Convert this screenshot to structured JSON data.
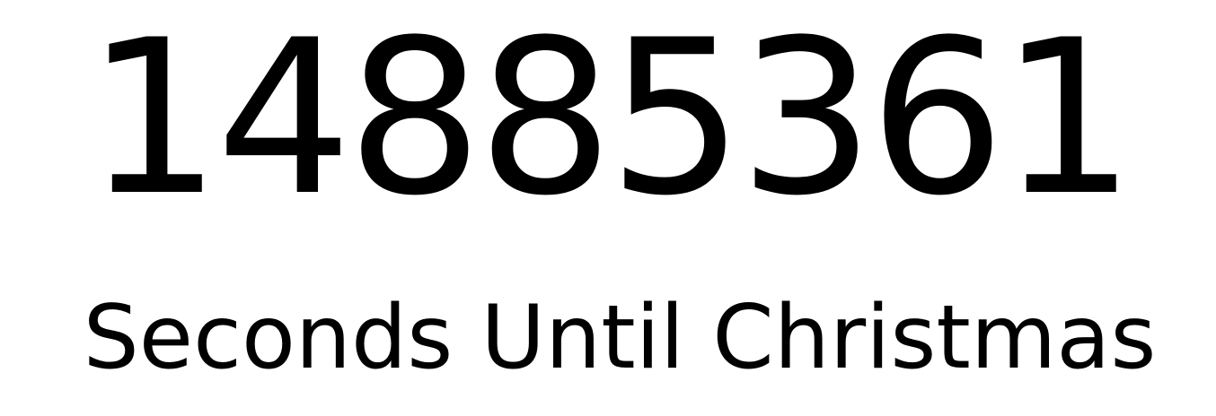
{
  "countdown": {
    "value": "14885361",
    "caption": "Seconds Until Christmas"
  },
  "colors": {
    "background": "#ffffff",
    "text": "#000000"
  }
}
